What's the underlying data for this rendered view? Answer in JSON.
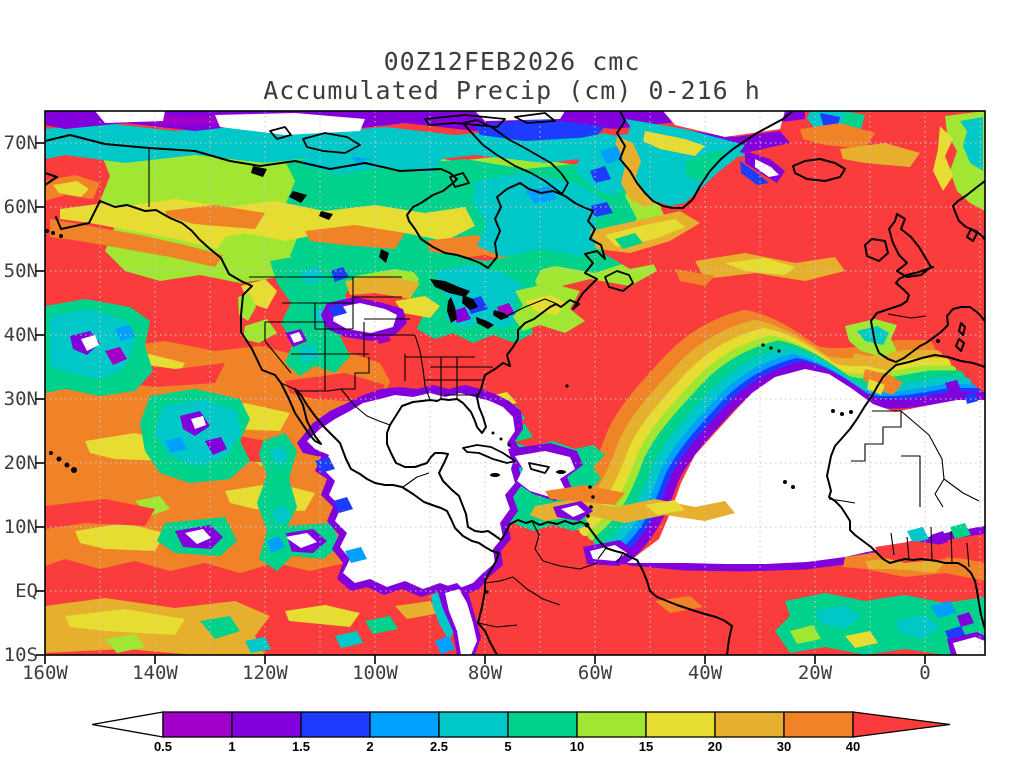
{
  "title": {
    "line1": "00Z12FEB2026 cmc",
    "line2": "Accumulated Precip (cm) 0-216 h"
  },
  "map": {
    "lat_ticks": [
      "70N",
      "60N",
      "50N",
      "40N",
      "30N",
      "20N",
      "10N",
      "EQ",
      "10S"
    ],
    "lon_ticks": [
      "160W",
      "140W",
      "120W",
      "100W",
      "80W",
      "60W",
      "40W",
      "20W",
      "0"
    ]
  },
  "colorbar": {
    "levels": [
      "0.5",
      "1",
      "1.5",
      "2",
      "2.5",
      "5",
      "10",
      "15",
      "20",
      "30",
      "40"
    ],
    "segment_colors": [
      "#A000C8",
      "#8200DC",
      "#1E3CFF",
      "#00A0FF",
      "#00C8C8",
      "#00D28C",
      "#A0E632",
      "#E6DC32",
      "#E6AF2D",
      "#F08228"
    ],
    "below_color": "#FFFFFF",
    "above_color": "#FA3C3C"
  },
  "palette": {
    "red": "#FA3C3C",
    "orange": "#F08228",
    "gold": "#E6AF2D",
    "yellow": "#E6DC32",
    "ygreen": "#A0E632",
    "green": "#00D28C",
    "cyan": "#00C8C8",
    "azure": "#00A0FF",
    "blue": "#1E3CFF",
    "violet": "#8200DC",
    "magenta": "#A000C8",
    "white": "#FFFFFF",
    "coast": "#000000",
    "grid": "#C8C8C8",
    "frame": "#000000",
    "text": "#3D3D3D"
  }
}
